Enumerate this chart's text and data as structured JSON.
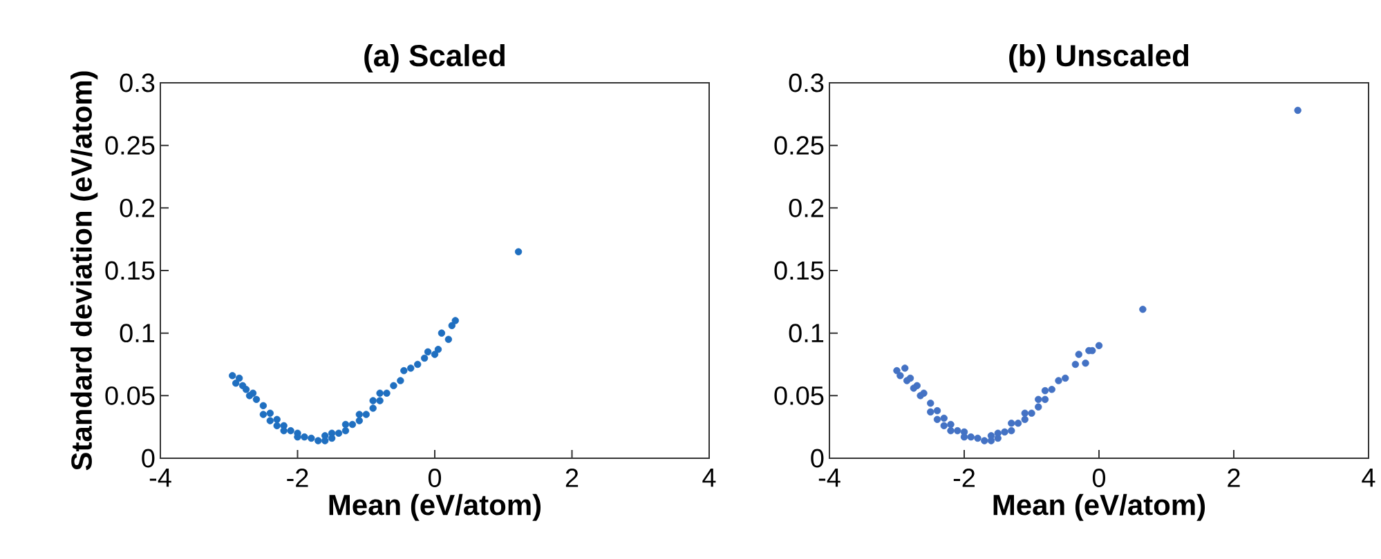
{
  "chart_data": [
    {
      "type": "scatter",
      "title": "(a) Scaled",
      "xlabel": "Mean (eV/atom)",
      "ylabel": "Standard deviation (eV/atom)",
      "xlim": [
        -4,
        4
      ],
      "ylim": [
        0,
        0.3
      ],
      "xticks": [
        -4,
        -2,
        0,
        2,
        4
      ],
      "yticks": [
        0,
        0.05,
        0.1,
        0.15,
        0.2,
        0.25,
        0.3
      ],
      "marker": "circle",
      "series": [
        {
          "color": "#1f6fc0",
          "x": [
            -2.95,
            -2.9,
            -2.85,
            -2.8,
            -2.75,
            -2.7,
            -2.65,
            -2.6,
            -2.5,
            -2.5,
            -2.4,
            -2.4,
            -2.3,
            -2.3,
            -2.2,
            -2.2,
            -2.1,
            -2.0,
            -2.0,
            -1.9,
            -1.8,
            -1.7,
            -1.6,
            -1.6,
            -1.5,
            -1.5,
            -1.4,
            -1.3,
            -1.3,
            -1.2,
            -1.1,
            -1.1,
            -1.0,
            -0.9,
            -0.9,
            -0.8,
            -0.8,
            -0.7,
            -0.6,
            -0.5,
            -0.45,
            -0.35,
            -0.25,
            -0.15,
            -0.1,
            0.0,
            0.05,
            0.1,
            0.2,
            0.25,
            0.3,
            1.22
          ],
          "values": [
            0.066,
            0.06,
            0.064,
            0.058,
            0.055,
            0.05,
            0.052,
            0.047,
            0.042,
            0.035,
            0.036,
            0.03,
            0.031,
            0.026,
            0.026,
            0.022,
            0.022,
            0.02,
            0.017,
            0.017,
            0.016,
            0.014,
            0.014,
            0.018,
            0.016,
            0.02,
            0.02,
            0.022,
            0.027,
            0.027,
            0.03,
            0.035,
            0.035,
            0.04,
            0.046,
            0.046,
            0.052,
            0.052,
            0.058,
            0.062,
            0.07,
            0.072,
            0.075,
            0.08,
            0.085,
            0.083,
            0.087,
            0.1,
            0.095,
            0.106,
            0.11,
            0.165
          ]
        }
      ]
    },
    {
      "type": "scatter",
      "title": "(b) Unscaled",
      "xlabel": "Mean (eV/atom)",
      "xlim": [
        -4,
        4
      ],
      "ylim": [
        0,
        0.3
      ],
      "xticks": [
        -4,
        -2,
        0,
        2,
        4
      ],
      "yticks": [
        0,
        0.05,
        0.1,
        0.15,
        0.2,
        0.25,
        0.3
      ],
      "marker": "circle",
      "series": [
        {
          "color": "#4472c4",
          "x": [
            -3.0,
            -2.95,
            -2.88,
            -2.85,
            -2.8,
            -2.75,
            -2.7,
            -2.65,
            -2.6,
            -2.5,
            -2.5,
            -2.4,
            -2.4,
            -2.3,
            -2.3,
            -2.2,
            -2.2,
            -2.1,
            -2.0,
            -2.0,
            -1.9,
            -1.8,
            -1.7,
            -1.6,
            -1.6,
            -1.5,
            -1.5,
            -1.4,
            -1.3,
            -1.3,
            -1.2,
            -1.1,
            -1.1,
            -1.0,
            -0.9,
            -0.9,
            -0.8,
            -0.8,
            -0.7,
            -0.6,
            -0.5,
            -0.35,
            -0.3,
            -0.2,
            -0.15,
            -0.1,
            0.0,
            0.65,
            2.95
          ],
          "values": [
            0.07,
            0.066,
            0.072,
            0.062,
            0.064,
            0.056,
            0.058,
            0.05,
            0.052,
            0.044,
            0.037,
            0.038,
            0.031,
            0.032,
            0.026,
            0.027,
            0.022,
            0.022,
            0.021,
            0.017,
            0.017,
            0.016,
            0.014,
            0.014,
            0.018,
            0.016,
            0.02,
            0.021,
            0.022,
            0.028,
            0.028,
            0.031,
            0.036,
            0.036,
            0.041,
            0.047,
            0.047,
            0.054,
            0.055,
            0.062,
            0.064,
            0.075,
            0.083,
            0.076,
            0.086,
            0.086,
            0.09,
            0.119,
            0.278
          ]
        }
      ]
    }
  ]
}
